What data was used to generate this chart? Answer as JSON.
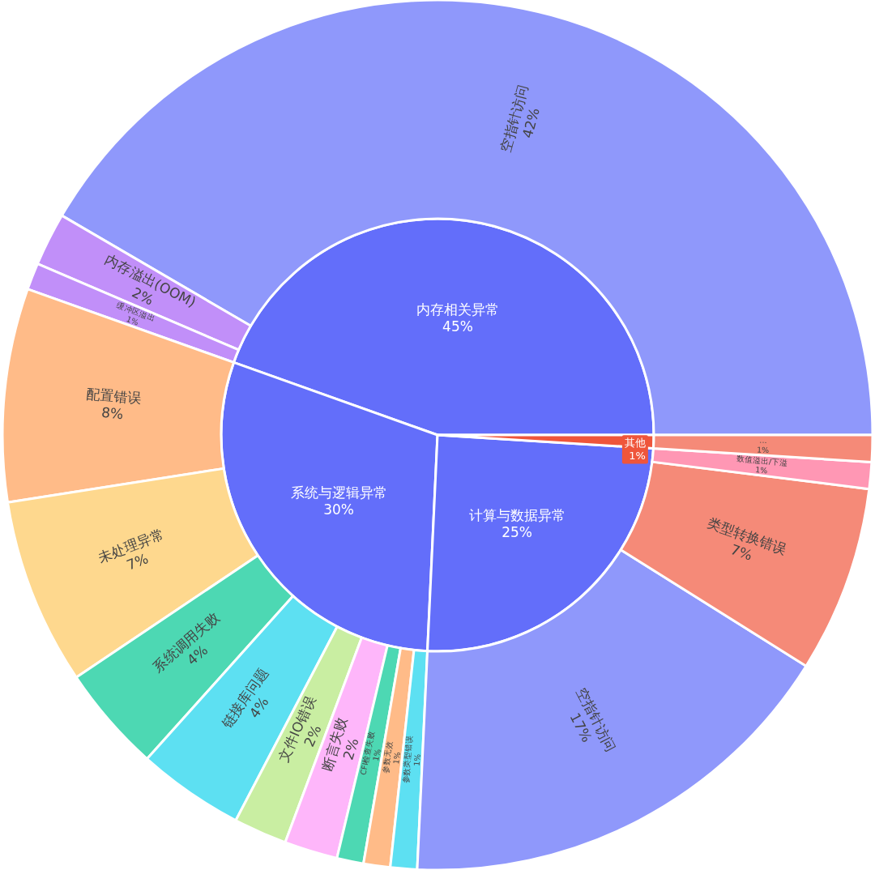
{
  "chart_data": [
    {
      "type": "pie",
      "categories": [
        "内存相关异常",
        "系统与逻辑异常",
        "计算与数据异常",
        "其他"
      ],
      "values": [
        45,
        30,
        25,
        1
      ],
      "value_labels": [
        "45%",
        "30%",
        "25%",
        "1%"
      ],
      "colors": [
        "#636efa",
        "#636efa",
        "#636efa",
        "#ef553b"
      ]
    },
    {
      "type": "donut",
      "categories": [
        "空指针访问",
        "内存溢出(OOM)",
        "缓冲区溢出",
        "配置错误",
        "未处理异常",
        "系统调用失败",
        "链接库问题",
        "文件IO错误",
        "断言失败",
        "CFI检查失败",
        "参数无效",
        "参数类型错误",
        "空指针访问",
        "类型转换错误",
        "数值溢出/下溢",
        "..."
      ],
      "values": [
        42,
        2,
        1,
        8,
        7,
        4,
        4,
        2,
        2,
        1,
        1,
        1,
        17,
        7,
        1,
        1
      ],
      "value_labels": [
        "42%",
        "2%",
        "1%",
        "8%",
        "7%",
        "4%",
        "4%",
        "2%",
        "2%",
        "1%",
        "1%",
        "1%",
        "17%",
        "7%",
        "1%",
        "1%"
      ],
      "colors": [
        "#8f98fb",
        "#c18ff9",
        "#c18ff9",
        "#ffbb88",
        "#fed88e",
        "#4dd8b3",
        "#5de0f2",
        "#c9eea2",
        "#feb6fa",
        "#4dd8b3",
        "#ffbb88",
        "#5de0f2",
        "#8f98fb",
        "#f58a78",
        "#ff97b4",
        "#f58a78"
      ]
    }
  ]
}
